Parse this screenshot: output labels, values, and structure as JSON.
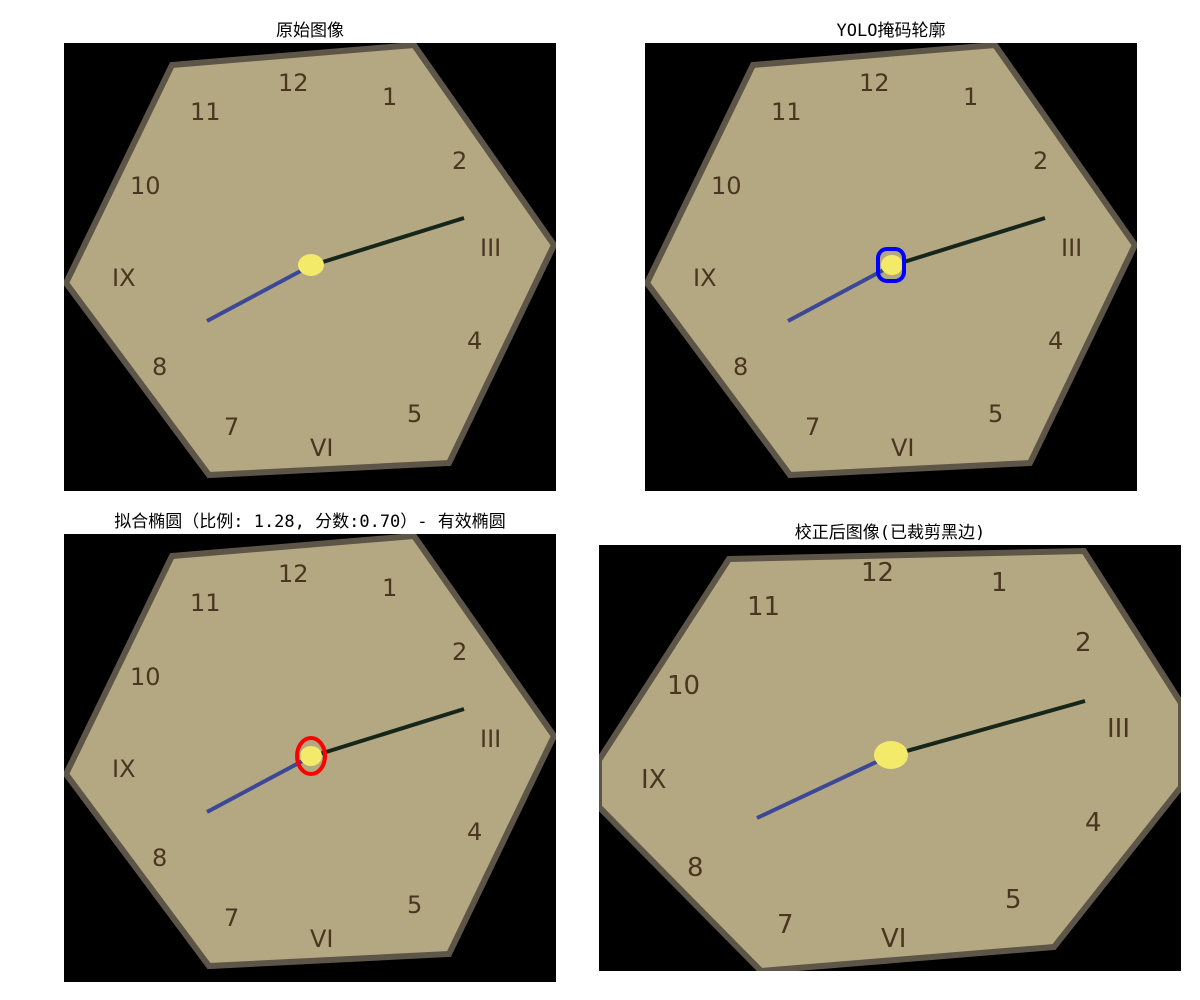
{
  "panels": [
    {
      "id": "p1",
      "title": "原始图像"
    },
    {
      "id": "p2",
      "title": "YOLO掩码轮廓"
    },
    {
      "id": "p3",
      "title": "拟合椭圆（比例: 1.28, 分数:0.70）- 有效椭圆"
    },
    {
      "id": "p4",
      "title": "校正后图像(已裁剪黑边)"
    }
  ],
  "clock_numerals": {
    "n12": "12",
    "n1": "1",
    "n2": "2",
    "n3": "III",
    "n4": "4",
    "n5": "5",
    "n6": "VI",
    "n7": "7",
    "n8": "8",
    "n9": "IX",
    "n10": "10",
    "n11": "11"
  },
  "colors": {
    "background": "#000000",
    "clock_face": "#b4a882",
    "clock_border": "#5d5548",
    "numeral": "#4a3620",
    "hour_hand": "#3c4896",
    "minute_hand": "#16261a",
    "center_dot": "#f4ea6a",
    "mask_contour": "#0000ff",
    "fitted_ellipse": "#ff0000"
  }
}
